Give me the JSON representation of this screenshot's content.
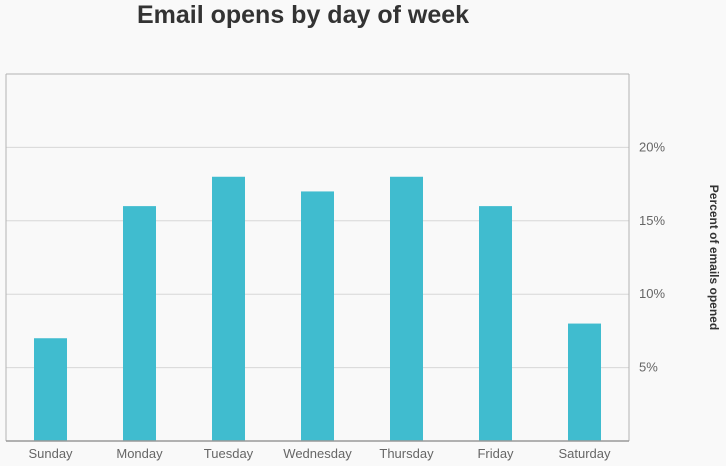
{
  "chart_data": {
    "type": "bar",
    "title": "Email opens by day of week",
    "categories": [
      "Sunday",
      "Monday",
      "Tuesday",
      "Wednesday",
      "Thursday",
      "Friday",
      "Saturday"
    ],
    "values": [
      7,
      16,
      18,
      17,
      18,
      16,
      8
    ],
    "ylabel": "Percent of emails opened",
    "xlabel": "",
    "ylim": [
      0,
      25
    ],
    "yticks": [
      5,
      10,
      15,
      20
    ],
    "ytick_suffix": "%",
    "y_axis_side": "right",
    "grid": true,
    "bar_color": "#40bccf",
    "grid_color": "#d8d8d8",
    "axis_color": "#b3b3b3"
  }
}
